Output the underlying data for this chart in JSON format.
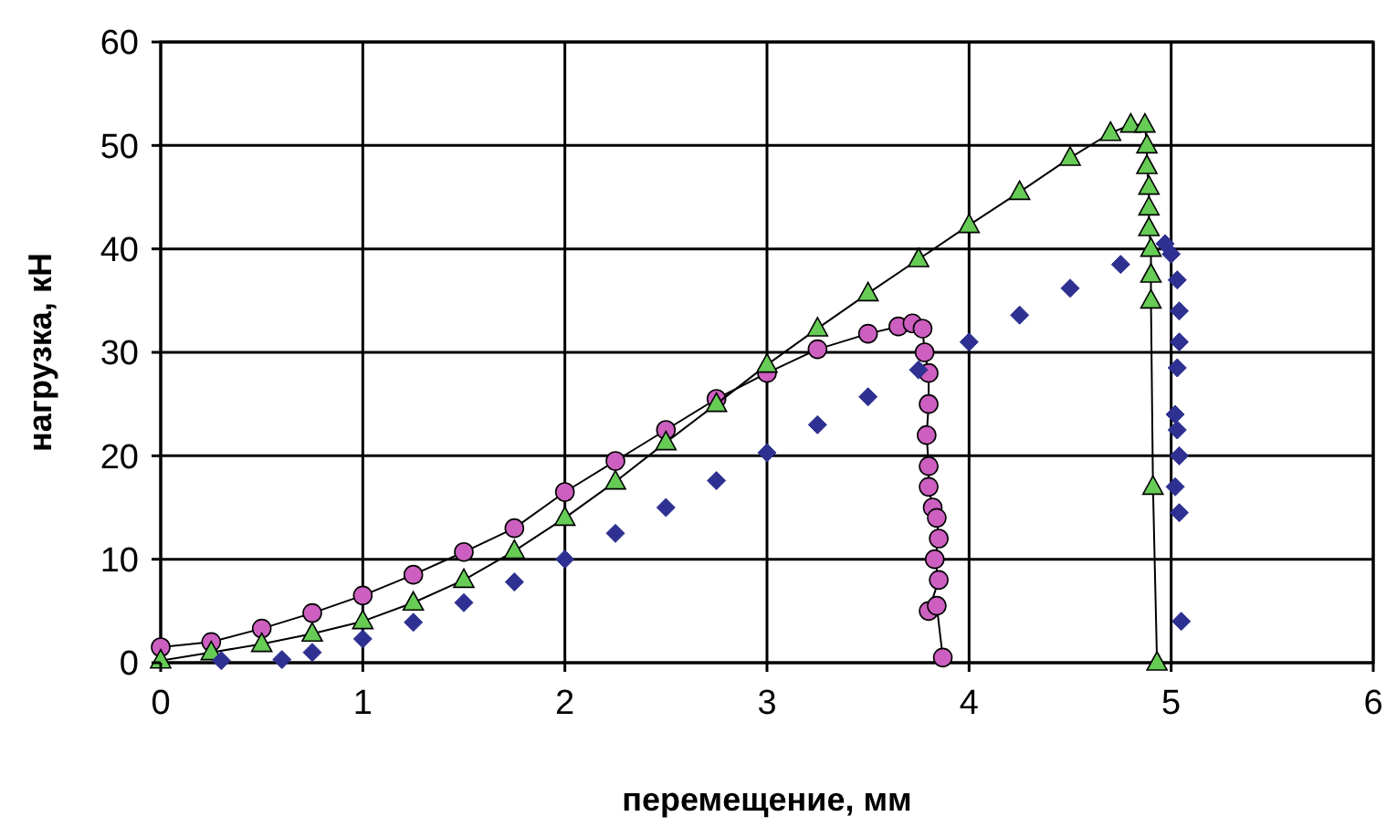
{
  "chart_data": {
    "type": "line",
    "xlabel": "перемещение, мм",
    "ylabel": "нагрузка, кН",
    "xlim": [
      0,
      6
    ],
    "ylim": [
      0,
      60
    ],
    "xticks": [
      0,
      1,
      2,
      3,
      4,
      5,
      6
    ],
    "yticks": [
      0,
      10,
      20,
      30,
      40,
      50,
      60
    ],
    "grid": true,
    "line_style": "solid",
    "series": [
      {
        "marker": "circle",
        "color": "#cc5fc0",
        "x": [
          0,
          0.25,
          0.5,
          0.75,
          1,
          1.25,
          1.5,
          1.75,
          2,
          2.25,
          2.5,
          2.75,
          3,
          3.25,
          3.5,
          3.65,
          3.72,
          3.77,
          3.78,
          3.8,
          3.8,
          3.79,
          3.8,
          3.8,
          3.82,
          3.84,
          3.85,
          3.83,
          3.85,
          3.8,
          3.84,
          3.87
        ],
        "values": [
          1.5,
          2,
          3.3,
          4.8,
          6.5,
          8.5,
          10.7,
          13,
          16.5,
          19.5,
          22.5,
          25.5,
          28,
          30.3,
          31.8,
          32.5,
          32.8,
          32.3,
          30,
          28,
          25,
          22,
          19,
          17,
          15,
          14,
          12,
          10,
          8,
          5,
          5.5,
          0.5
        ]
      },
      {
        "marker": "triangle",
        "color": "#66cc55",
        "x": [
          0,
          0.25,
          0.5,
          0.75,
          1,
          1.25,
          1.5,
          1.75,
          2,
          2.25,
          2.5,
          2.75,
          3,
          3.25,
          3.5,
          3.75,
          4,
          4.25,
          4.5,
          4.7,
          4.8,
          4.87,
          4.88,
          4.88,
          4.89,
          4.89,
          4.89,
          4.9,
          4.9,
          4.9,
          4.91,
          4.93
        ],
        "values": [
          0.2,
          1,
          1.8,
          2.8,
          4,
          5.8,
          8,
          10.8,
          14,
          17.5,
          21.3,
          25,
          28.8,
          32.3,
          35.7,
          39,
          42.3,
          45.5,
          48.8,
          51.2,
          52,
          52,
          50,
          48,
          46,
          44,
          42,
          40,
          37.5,
          35,
          17,
          0
        ]
      },
      {
        "type": "scatter",
        "marker": "diamond",
        "color": "#2e3191",
        "x": [
          0.3,
          0.6,
          0.75,
          1,
          1.25,
          1.5,
          1.75,
          2,
          2.25,
          2.5,
          2.75,
          3,
          3.25,
          3.5,
          3.75,
          4,
          4.25,
          4.5,
          4.75,
          4.97,
          5,
          5.03,
          5.04,
          5.04,
          5.03,
          5.02,
          5.03,
          5.04,
          5.02,
          5.04,
          5.05
        ],
        "values": [
          0.2,
          0.3,
          1,
          2.3,
          3.9,
          5.8,
          7.8,
          10,
          12.5,
          15,
          17.6,
          20.3,
          23,
          25.7,
          28.3,
          31,
          33.6,
          36.2,
          38.5,
          40.5,
          39.5,
          37,
          34,
          31,
          28.5,
          24,
          22.5,
          20,
          17,
          14.5,
          4
        ]
      }
    ]
  }
}
